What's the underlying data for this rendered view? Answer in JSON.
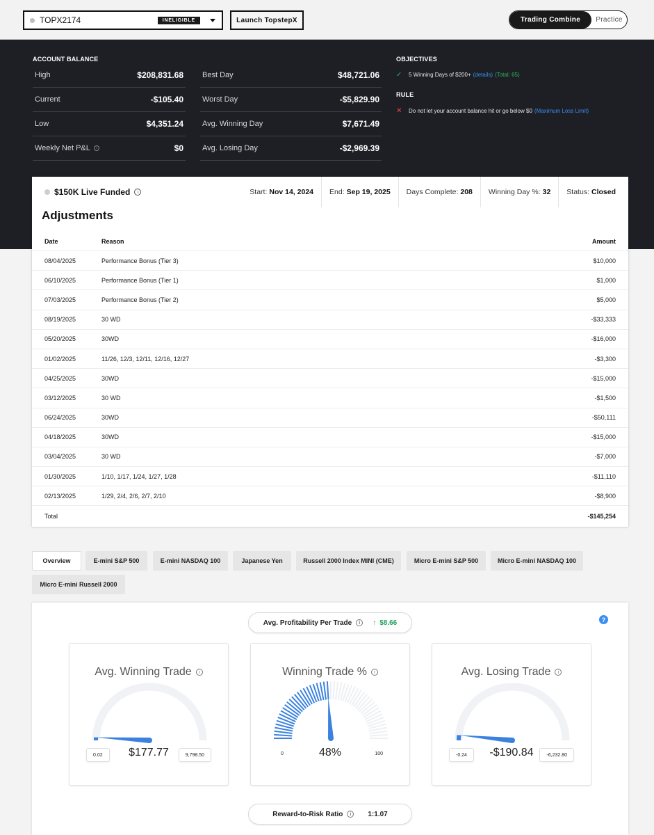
{
  "topbar": {
    "account_name": "TOPX2174",
    "account_status": "INELIGIBLE",
    "launch_button": "Launch TopstepX",
    "mode_active": "Trading Combine",
    "mode_inactive": "Practice"
  },
  "balance": {
    "section_title": "ACCOUNT BALANCE",
    "left": [
      {
        "label": "High",
        "value": "$208,831.68"
      },
      {
        "label": "Current",
        "value": "-$105.40"
      },
      {
        "label": "Low",
        "value": "$4,351.24"
      },
      {
        "label": "Weekly Net P&L",
        "value": "$0"
      }
    ],
    "right": [
      {
        "label": "Best Day",
        "value": "$48,721.06"
      },
      {
        "label": "Worst Day",
        "value": "-$5,829.90"
      },
      {
        "label": "Avg. Winning Day",
        "value": "$7,671.49"
      },
      {
        "label": "Avg. Losing Day",
        "value": "-$2,969.39"
      }
    ]
  },
  "objectives": {
    "title": "OBJECTIVES",
    "item_text": "5 Winning Days of $200+",
    "item_details": "(details)",
    "item_total": "(Total: 65)",
    "rule_title": "RULE",
    "rule_text": "Do not let your account balance hit or go below $0",
    "rule_link": "(Maximum Loss Limit)"
  },
  "funded": {
    "title": "$150K Live Funded",
    "start_label": "Start:",
    "start_value": "Nov 14, 2024",
    "end_label": "End:",
    "end_value": "Sep 19, 2025",
    "days_label": "Days Complete:",
    "days_value": "208",
    "winpct_label": "Winning Day %:",
    "winpct_value": "32",
    "status_label": "Status:",
    "status_value": "Closed"
  },
  "adjustments": {
    "title": "Adjustments",
    "headers": {
      "date": "Date",
      "reason": "Reason",
      "amount": "Amount"
    },
    "rows": [
      {
        "date": "08/04/2025",
        "reason": "Performance Bonus (Tier 3)",
        "amount": "$10,000"
      },
      {
        "date": "06/10/2025",
        "reason": "Performance Bonus (Tier 1)",
        "amount": "$1,000"
      },
      {
        "date": "07/03/2025",
        "reason": "Performance Bonus (Tier 2)",
        "amount": "$5,000"
      },
      {
        "date": "08/19/2025",
        "reason": "30 WD",
        "amount": "-$33,333"
      },
      {
        "date": "05/20/2025",
        "reason": "30WD",
        "amount": "-$16,000"
      },
      {
        "date": "01/02/2025",
        "reason": "11/26, 12/3, 12/11, 12/16, 12/27",
        "amount": "-$3,300"
      },
      {
        "date": "04/25/2025",
        "reason": "30WD",
        "amount": "-$15,000"
      },
      {
        "date": "03/12/2025",
        "reason": "30 WD",
        "amount": "-$1,500"
      },
      {
        "date": "06/24/2025",
        "reason": "30WD",
        "amount": "-$50,111"
      },
      {
        "date": "04/18/2025",
        "reason": "30WD",
        "amount": "-$15,000"
      },
      {
        "date": "03/04/2025",
        "reason": "30 WD",
        "amount": "-$7,000"
      },
      {
        "date": "01/30/2025",
        "reason": "1/10, 1/17, 1/24, 1/27, 1/28",
        "amount": "-$11,110"
      },
      {
        "date": "02/13/2025",
        "reason": "1/29, 2/4, 2/6, 2/7, 2/10",
        "amount": "-$8,900"
      }
    ],
    "total_label": "Total",
    "total_value": "-$145,254"
  },
  "tabs": [
    "Overview",
    "E-mini S&P 500",
    "E-mini NASDAQ 100",
    "Japanese Yen",
    "Russell 2000 Index MINI (CME)",
    "Micro E-mini S&P 500",
    "Micro E-mini NASDAQ 100",
    "Micro E-mini Russell 2000"
  ],
  "stats": {
    "avg_profit_label": "Avg. Profitability Per Trade",
    "avg_profit_value": "$8.66",
    "help": "?",
    "gauges": [
      {
        "title": "Avg. Winning Trade",
        "value": "$177.77",
        "min": "0.02",
        "max": "9,798.50",
        "fraction": 0.018
      },
      {
        "title": "Winning Trade %",
        "value": "48%",
        "min": "0",
        "max": "100",
        "fraction": 0.48
      },
      {
        "title": "Avg. Losing Trade",
        "value": "-$190.84",
        "min": "-0.24",
        "max": "-6,232.80",
        "fraction": 0.031
      }
    ],
    "rr_label": "Reward-to-Risk Ratio",
    "rr_value": "1:1.07"
  },
  "colors": {
    "dark_bg": "#1d1f25",
    "gauge_blue": "#3b82e0",
    "positive": "#23a35a",
    "negative": "#e5483d",
    "link": "#3b8ff0"
  }
}
